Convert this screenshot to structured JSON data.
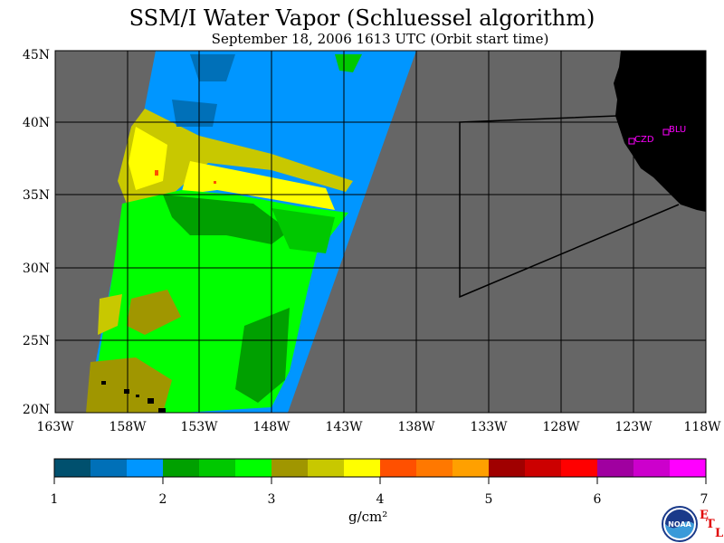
{
  "title": "SSM/I Water Vapor (Schluessel algorithm)",
  "subtitle": "September 18, 2006   1613 UTC   (Orbit start time)",
  "lat_labels": [
    "45N",
    "40N",
    "35N",
    "30N",
    "25N",
    "20N"
  ],
  "lon_labels": [
    "163W",
    "158W",
    "153W",
    "148W",
    "143W",
    "138W",
    "133W",
    "128W",
    "123W",
    "118W"
  ],
  "stations": [
    {
      "name": "CZD"
    },
    {
      "name": "BLU"
    }
  ],
  "colorbar": {
    "colors": [
      "#00506e",
      "#0070b8",
      "#0096ff",
      "#00a000",
      "#00c800",
      "#00ff00",
      "#a09600",
      "#c8c800",
      "#ffff00",
      "#ff5000",
      "#ff7800",
      "#ffa000",
      "#a00000",
      "#cc0000",
      "#ff0000",
      "#a000a0",
      "#cc00cc",
      "#ff00ff"
    ],
    "tick_labels": [
      "1",
      "2",
      "3",
      "4",
      "5",
      "6",
      "7"
    ],
    "unit": "g/cm²"
  },
  "credit": {
    "e": "E",
    "t": "T",
    "l": "L",
    "logo": "NOAA"
  },
  "legend_colors": {
    "ocean_masked": "#666666",
    "land": "#000000",
    "station_marker": "#ff00ff"
  }
}
